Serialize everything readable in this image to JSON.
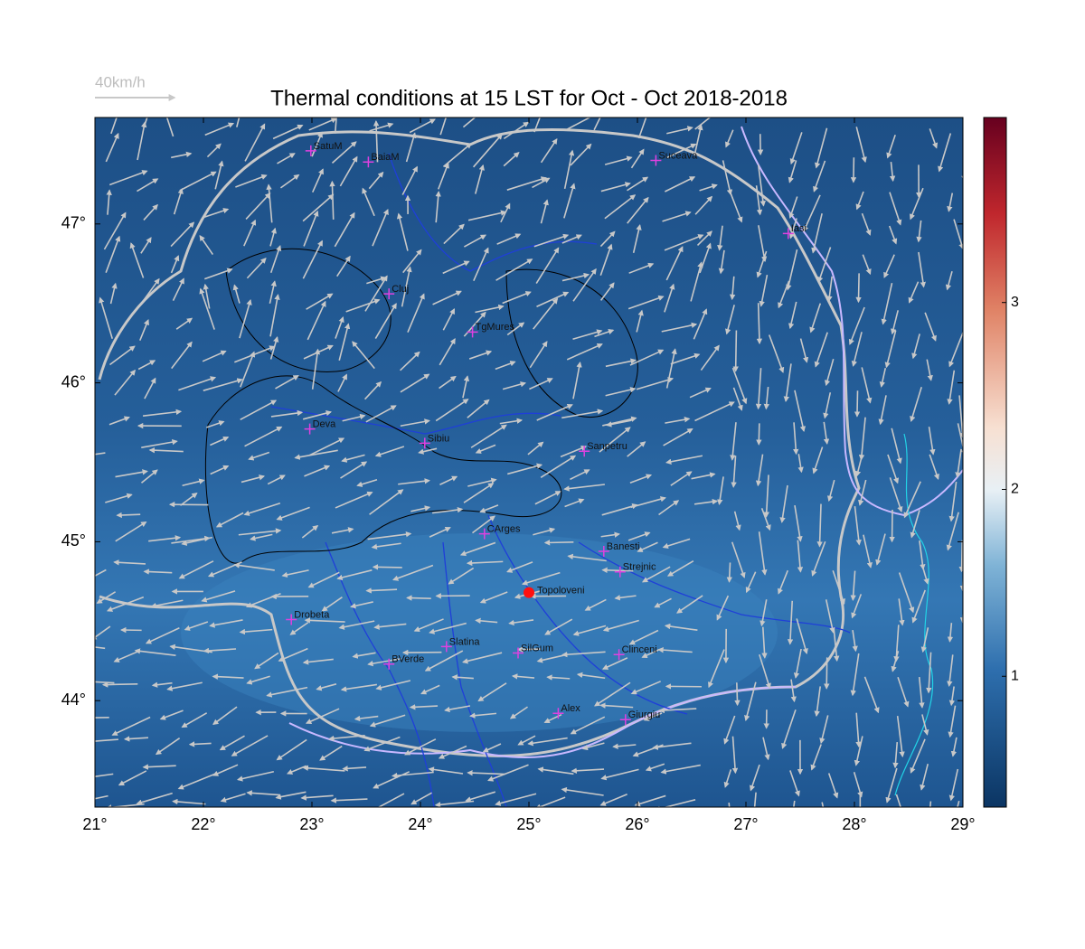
{
  "chart_data": {
    "type": "map",
    "title": "Thermal conditions at 15 LST for Oct - Oct  2018-2018",
    "wind_legend": "40km/h",
    "xlim": [
      21,
      29
    ],
    "ylim": [
      43.33,
      47.67
    ],
    "xticks": [
      {
        "value": 21,
        "label": "21°"
      },
      {
        "value": 22,
        "label": "22°"
      },
      {
        "value": 23,
        "label": "23°"
      },
      {
        "value": 24,
        "label": "24°"
      },
      {
        "value": 25,
        "label": "25°"
      },
      {
        "value": 26,
        "label": "26°"
      },
      {
        "value": 27,
        "label": "27°"
      },
      {
        "value": 28,
        "label": "28°"
      },
      {
        "value": 29,
        "label": "29°"
      }
    ],
    "yticks": [
      {
        "value": 44,
        "label": "44°"
      },
      {
        "value": 45,
        "label": "45°"
      },
      {
        "value": 46,
        "label": "46°"
      },
      {
        "value": 47,
        "label": "47°"
      }
    ],
    "colorbar": {
      "lim": [
        0.3,
        3.99
      ],
      "ticks": [
        1,
        2,
        3
      ]
    },
    "stations": [
      {
        "name": "SatuM",
        "lon": 22.99,
        "lat": 47.46
      },
      {
        "name": "BaiaM",
        "lon": 23.52,
        "lat": 47.39
      },
      {
        "name": "Suceava",
        "lon": 26.17,
        "lat": 47.4
      },
      {
        "name": "Iasi",
        "lon": 27.39,
        "lat": 46.94
      },
      {
        "name": "Cluj",
        "lon": 23.71,
        "lat": 46.56
      },
      {
        "name": "TgMures",
        "lon": 24.48,
        "lat": 46.32
      },
      {
        "name": "Deva",
        "lon": 22.98,
        "lat": 45.71
      },
      {
        "name": "Sibiu",
        "lon": 24.04,
        "lat": 45.62
      },
      {
        "name": "Sanpetru",
        "lon": 25.51,
        "lat": 45.57
      },
      {
        "name": "CArges",
        "lon": 24.59,
        "lat": 45.05
      },
      {
        "name": "Banesti",
        "lon": 25.69,
        "lat": 44.94
      },
      {
        "name": "Strejnic",
        "lon": 25.84,
        "lat": 44.81
      },
      {
        "name": "Drobeta",
        "lon": 22.81,
        "lat": 44.51
      },
      {
        "name": "Slatina",
        "lon": 24.24,
        "lat": 44.34
      },
      {
        "name": "SilGum",
        "lon": 24.9,
        "lat": 44.3
      },
      {
        "name": "BVerde",
        "lon": 23.71,
        "lat": 44.23
      },
      {
        "name": "Clinceni",
        "lon": 25.83,
        "lat": 44.29
      },
      {
        "name": "Alex",
        "lon": 25.27,
        "lat": 43.92
      },
      {
        "name": "Giurgiu",
        "lon": 25.89,
        "lat": 43.88
      }
    ],
    "highlight": {
      "name": "Topoloveni",
      "lon": 25.0,
      "lat": 44.68
    }
  }
}
